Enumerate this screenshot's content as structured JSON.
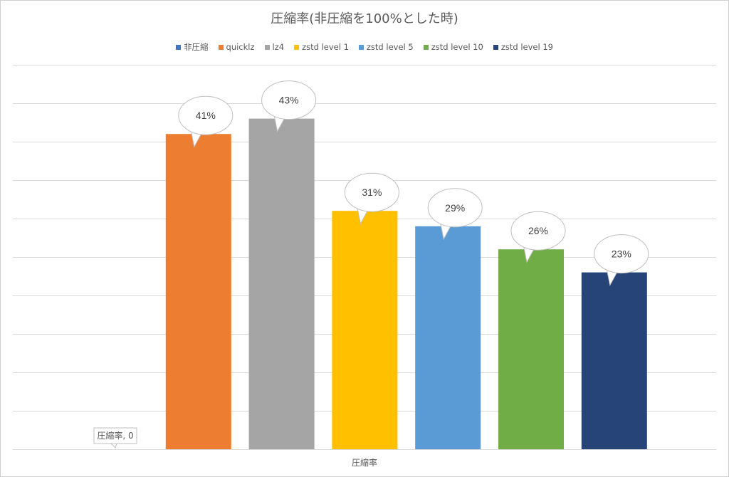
{
  "chart_data": {
    "type": "bar",
    "title": "圧縮率(非圧縮を100%とした時)",
    "categories": [
      "圧縮率"
    ],
    "xlabel": "",
    "ylim": [
      0,
      50
    ],
    "grid": true,
    "legend_position": "top",
    "series": [
      {
        "name": "非圧縮",
        "value": 0,
        "label": "圧縮率, 0",
        "color": "#4472C4"
      },
      {
        "name": "quicklz",
        "value": 41,
        "label": "41%",
        "color": "#ED7D31"
      },
      {
        "name": "lz4",
        "value": 43,
        "label": "43%",
        "color": "#A5A5A5"
      },
      {
        "name": "zstd level 1",
        "value": 31,
        "label": "31%",
        "color": "#FFC000"
      },
      {
        "name": "zstd level 5",
        "value": 29,
        "label": "29%",
        "color": "#5B9BD5"
      },
      {
        "name": "zstd level 10",
        "value": 26,
        "label": "26%",
        "color": "#70AD47"
      },
      {
        "name": "zstd level 19",
        "value": 23,
        "label": "23%",
        "color": "#264478"
      }
    ]
  }
}
